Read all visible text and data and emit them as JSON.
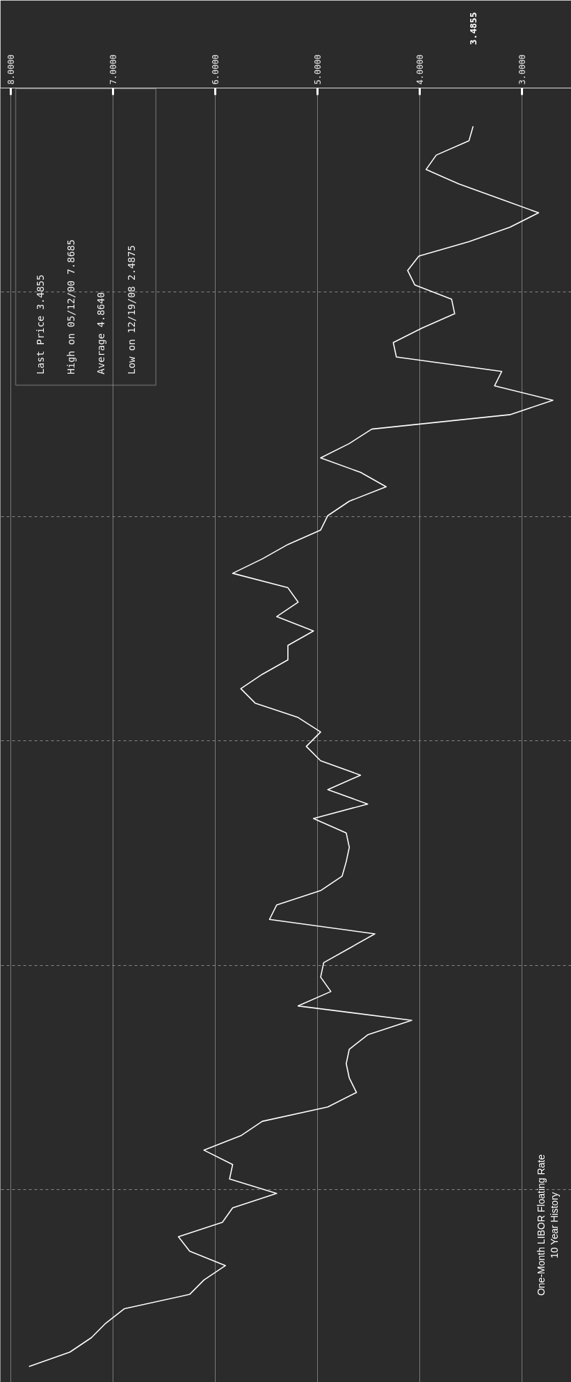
{
  "chart_data": {
    "type": "line",
    "orientation": "horizontal",
    "title": "One-Month LIBOR Floating Rate",
    "subtitle": "10 Year History",
    "categories": [
      null,
      null,
      null,
      null,
      null,
      null,
      null,
      null,
      null,
      null,
      null,
      null,
      null,
      null,
      null,
      null,
      null,
      null,
      null,
      null,
      null,
      null,
      null,
      null,
      null,
      null,
      null,
      null,
      null,
      null,
      null,
      null,
      null,
      null,
      null,
      null,
      null,
      null,
      null,
      null,
      null,
      null,
      null,
      null,
      null,
      null,
      null,
      null,
      null,
      null,
      null,
      null,
      null,
      null,
      null,
      null,
      null,
      null,
      null,
      null,
      null,
      null,
      null,
      null,
      null,
      null,
      null,
      null,
      null,
      null,
      null,
      null,
      null,
      null,
      null,
      null,
      null,
      null,
      null,
      null,
      null,
      null,
      null,
      null,
      null,
      null,
      null
    ],
    "series": [
      {
        "color": "#ffffff",
        "values": [
          3.48,
          3.52,
          3.84,
          3.94,
          3.62,
          3.23,
          2.84,
          3.12,
          3.52,
          4.01,
          4.12,
          4.05,
          3.69,
          3.66,
          3.98,
          4.26,
          4.23,
          3.2,
          3.27,
          2.7,
          3.12,
          4.47,
          4.69,
          4.97,
          4.58,
          4.33,
          4.69,
          4.9,
          4.97,
          5.29,
          5.54,
          5.83,
          5.29,
          5.19,
          5.4,
          5.04,
          5.29,
          5.29,
          5.54,
          5.75,
          5.61,
          5.19,
          4.97,
          5.11,
          4.97,
          4.58,
          4.9,
          4.51,
          5.04,
          4.72,
          4.69,
          4.72,
          4.76,
          4.97,
          5.4,
          5.47,
          4.44,
          4.69,
          4.94,
          4.97,
          4.87,
          5.19,
          4.08,
          4.51,
          4.69,
          4.72,
          4.69,
          4.62,
          4.9,
          5.54,
          5.75,
          6.11,
          5.83,
          5.86,
          5.4,
          5.83,
          5.93,
          6.36,
          6.25,
          5.9,
          6.11,
          6.25,
          6.89,
          7.07,
          7.21,
          7.42,
          7.82
        ]
      }
    ],
    "xlim": [
      8.1,
      2.52
    ],
    "xticks": [
      {
        "value": 8,
        "label": "8.0000"
      },
      {
        "value": 7,
        "label": "7.0000"
      },
      {
        "value": 6,
        "label": "6.0000"
      },
      {
        "value": 5,
        "label": "5.0000"
      },
      {
        "value": 4,
        "label": "4.0000"
      },
      {
        "value": 3,
        "label": "3.0000"
      }
    ],
    "tick_labels": "x",
    "grid": true,
    "annotations": [
      "Last Price 3.4855",
      "High on 05/12/00 7.8685",
      "Average 4.8640",
      "Low on 12/19/08 2.4875",
      "3.4855"
    ]
  }
}
